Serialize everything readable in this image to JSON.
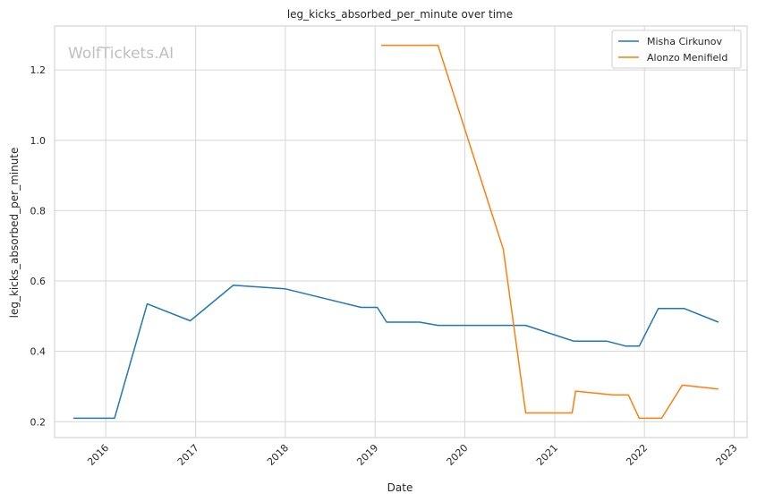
{
  "chart_data": {
    "type": "line",
    "title": "leg_kicks_absorbed_per_minute over time",
    "xlabel": "Date",
    "ylabel": "leg_kicks_absorbed_per_minute",
    "watermark": "WolfTickets.AI",
    "x_ticks": [
      "2016",
      "2017",
      "2018",
      "2019",
      "2020",
      "2021",
      "2022",
      "2023"
    ],
    "y_ticks": [
      "0.2",
      "0.4",
      "0.6",
      "0.8",
      "1.0",
      "1.2"
    ],
    "xlim": [
      "2015-06-07",
      "2023-02-23"
    ],
    "ylim": [
      0.155,
      1.325
    ],
    "grid": true,
    "legend_position": "top-right",
    "colors": {
      "series_0": "#1f77b4",
      "series_1": "#ff7f0e",
      "grid": "#d5d5d5",
      "axis": "#cccccc"
    },
    "series": [
      {
        "name": "Misha Cirkunov",
        "points": [
          [
            "2015-08-23",
            0.21
          ],
          [
            "2016-02-06",
            0.21
          ],
          [
            "2016-06-18",
            0.535
          ],
          [
            "2016-12-10",
            0.487
          ],
          [
            "2017-06-03",
            0.588
          ],
          [
            "2017-12-30",
            0.578
          ],
          [
            "2018-11-05",
            0.525
          ],
          [
            "2019-01-10",
            0.525
          ],
          [
            "2019-02-17",
            0.483
          ],
          [
            "2019-07-01",
            0.483
          ],
          [
            "2019-09-14",
            0.474
          ],
          [
            "2020-09-05",
            0.474
          ],
          [
            "2021-03-20",
            0.429
          ],
          [
            "2021-08-02",
            0.429
          ],
          [
            "2021-10-18",
            0.415
          ],
          [
            "2021-12-11",
            0.415
          ],
          [
            "2022-02-27",
            0.522
          ],
          [
            "2022-06-11",
            0.522
          ],
          [
            "2022-10-29",
            0.483
          ]
        ]
      },
      {
        "name": "Alonzo Menifield",
        "points": [
          [
            "2019-01-26",
            1.27
          ],
          [
            "2019-09-14",
            1.27
          ],
          [
            "2020-06-06",
            0.69
          ],
          [
            "2020-09-05",
            0.225
          ],
          [
            "2021-03-13",
            0.225
          ],
          [
            "2021-03-27",
            0.287
          ],
          [
            "2021-08-28",
            0.276
          ],
          [
            "2021-10-28",
            0.276
          ],
          [
            "2021-12-11",
            0.21
          ],
          [
            "2022-03-12",
            0.21
          ],
          [
            "2022-06-04",
            0.304
          ],
          [
            "2022-10-29",
            0.293
          ]
        ]
      }
    ]
  }
}
